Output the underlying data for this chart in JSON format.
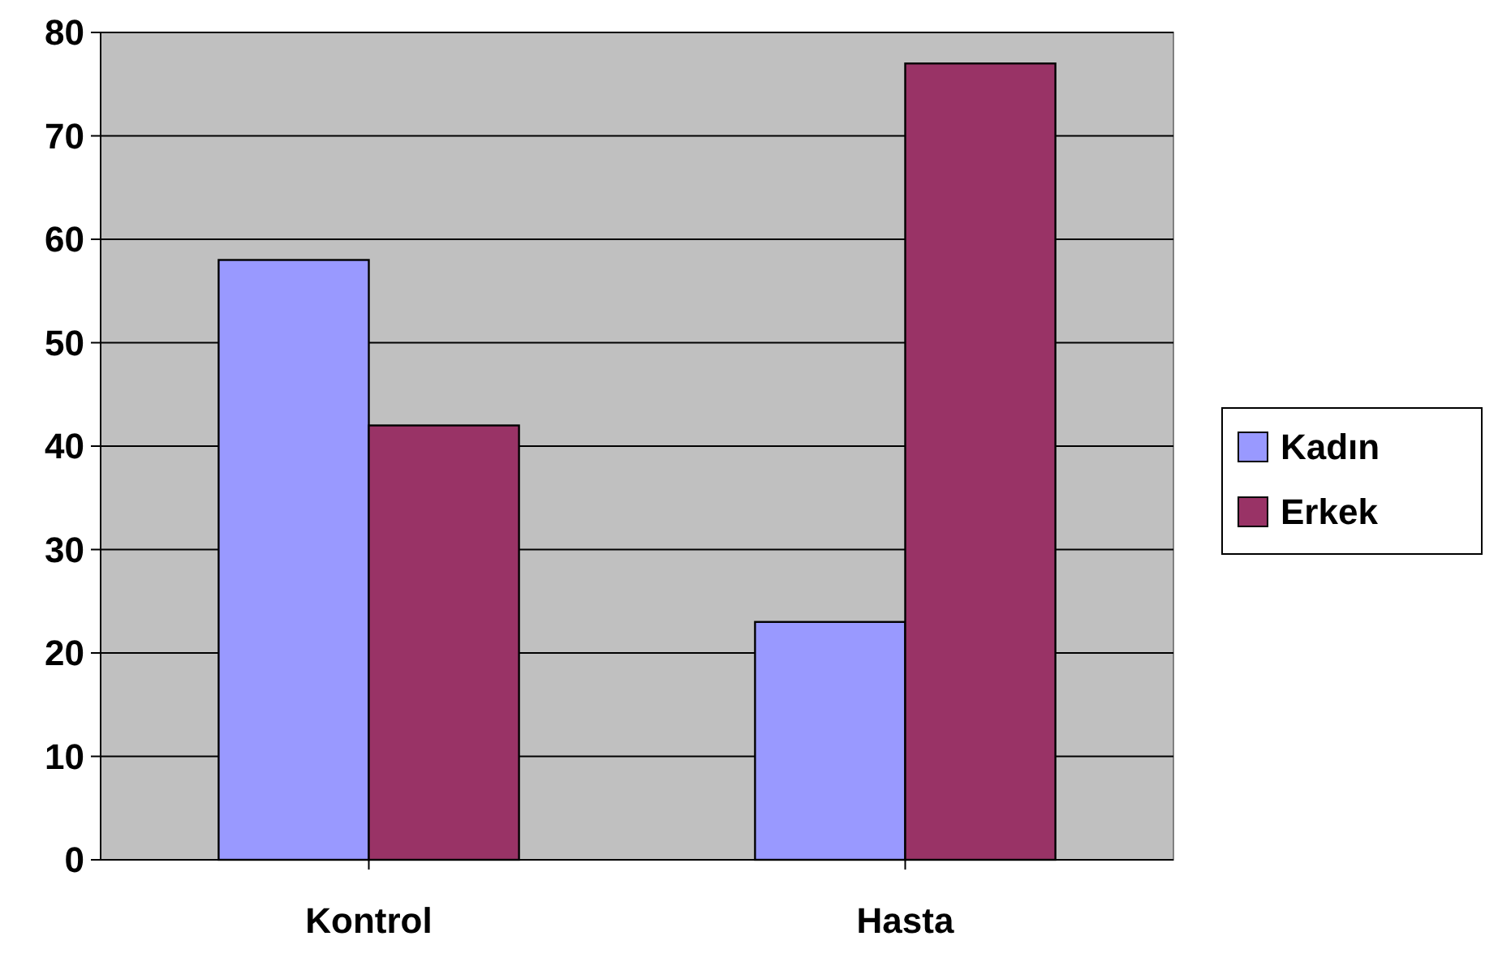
{
  "chart_data": {
    "type": "bar",
    "categories": [
      "Kontrol",
      "Hasta"
    ],
    "series": [
      {
        "name": "Kadın",
        "color": "#9999ff",
        "values": [
          58,
          23
        ]
      },
      {
        "name": "Erkek",
        "color": "#993366",
        "values": [
          42,
          77
        ]
      }
    ],
    "ylim": [
      0,
      80
    ],
    "yticks": [
      0,
      10,
      20,
      30,
      40,
      50,
      60,
      70,
      80
    ],
    "grid": "y",
    "legend": "right"
  }
}
